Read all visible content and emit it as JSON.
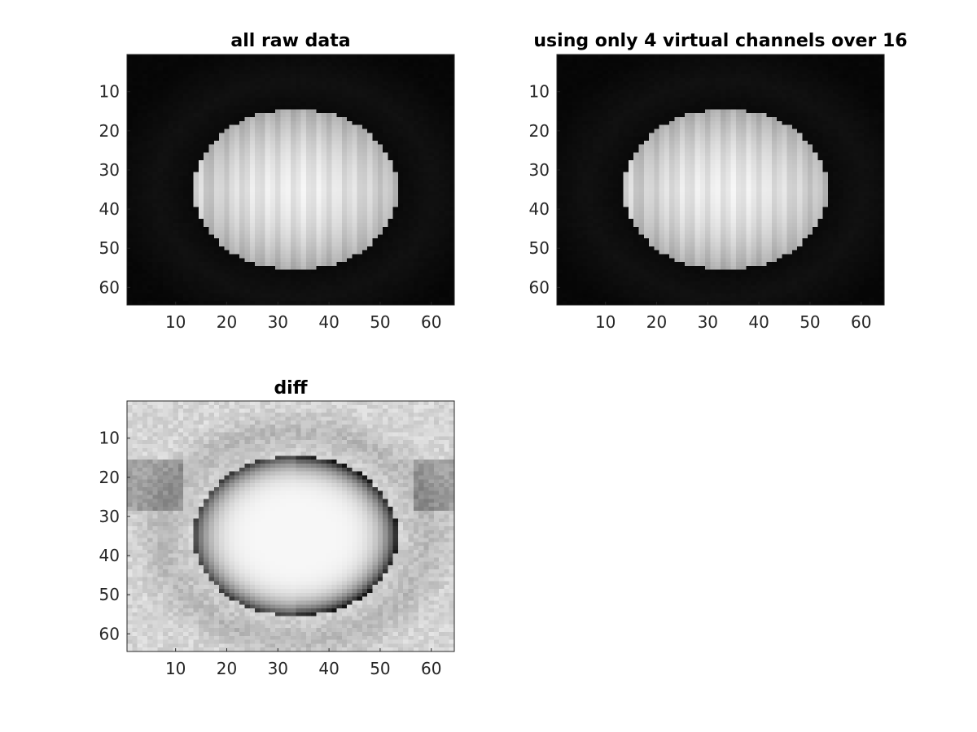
{
  "figure": {
    "background": "#ffffff",
    "colormap": "gray"
  },
  "chart_data": [
    {
      "type": "heatmap",
      "title": "all raw data",
      "xlabel": "",
      "ylabel": "",
      "xlim": [
        0.5,
        64.5
      ],
      "ylim": [
        0.5,
        64.5
      ],
      "y_direction": "reverse",
      "xticks": [
        10,
        20,
        30,
        40,
        50,
        60
      ],
      "yticks": [
        10,
        20,
        30,
        40,
        50,
        60
      ],
      "image_size": [
        64,
        64
      ],
      "content": "bright ellipse",
      "ellipse_center": [
        33.5,
        35
      ],
      "ellipse_semi_axes": [
        20,
        20.5
      ],
      "background_level": 0.02
    },
    {
      "type": "heatmap",
      "title": "using only 4 virtual channels over 16",
      "xlabel": "",
      "ylabel": "",
      "xlim": [
        0.5,
        64.5
      ],
      "ylim": [
        0.5,
        64.5
      ],
      "y_direction": "reverse",
      "xticks": [
        10,
        20,
        30,
        40,
        50,
        60
      ],
      "yticks": [
        10,
        20,
        30,
        40,
        50,
        60
      ],
      "image_size": [
        64,
        64
      ],
      "content": "bright ellipse",
      "ellipse_center": [
        33.5,
        35
      ],
      "ellipse_semi_axes": [
        20,
        20.5
      ],
      "background_level": 0.02
    },
    {
      "type": "heatmap",
      "title": "diff",
      "xlabel": "",
      "ylabel": "",
      "xlim": [
        0.5,
        64.5
      ],
      "ylim": [
        0.5,
        64.5
      ],
      "y_direction": "reverse",
      "xticks": [
        10,
        20,
        30,
        40,
        50,
        60
      ],
      "yticks": [
        10,
        20,
        30,
        40,
        50,
        60
      ],
      "image_size": [
        64,
        64
      ],
      "content": "difference map: dark ellipse rim, light interior, noisy light background",
      "ellipse_center": [
        33.5,
        35
      ],
      "ellipse_semi_axes": [
        20,
        20.5
      ],
      "background_level": 0.9
    }
  ]
}
